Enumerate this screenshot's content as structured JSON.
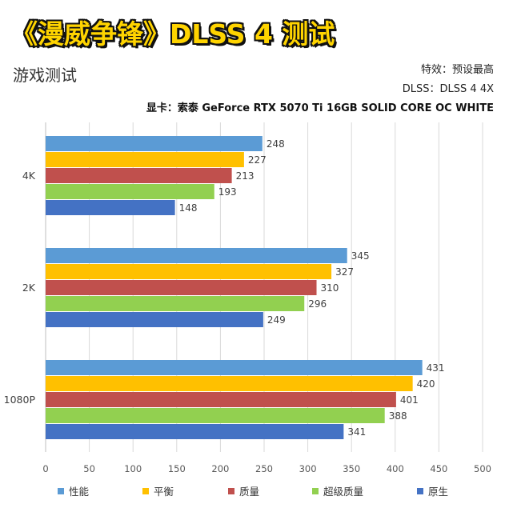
{
  "header": {
    "title": "《漫威争锋》DLSS 4 测试",
    "subtitle": "游戏测试",
    "setting_line": "特效：预设最高",
    "dlss_line": "DLSS：DLSS 4 4X",
    "gpu_line": "显卡：索泰 GeForce RTX 5070 Ti 16GB SOLID CORE OC WHITE"
  },
  "chart_data": {
    "type": "bar",
    "orientation": "horizontal",
    "categories": [
      "4K",
      "2K",
      "1080P"
    ],
    "series": [
      {
        "name": "性能",
        "color": "#5b9bd5",
        "values": [
          248,
          345,
          431
        ]
      },
      {
        "name": "平衡",
        "color": "#ffc000",
        "values": [
          227,
          327,
          420
        ]
      },
      {
        "name": "质量",
        "color": "#c0504d",
        "values": [
          213,
          310,
          401
        ]
      },
      {
        "name": "超级质量",
        "color": "#92d050",
        "values": [
          193,
          296,
          388
        ]
      },
      {
        "name": "原生",
        "color": "#4472c4",
        "values": [
          148,
          249,
          341
        ]
      }
    ],
    "xlim": [
      0,
      500
    ],
    "xticks": [
      0,
      50,
      100,
      150,
      200,
      250,
      300,
      350,
      400,
      450,
      500
    ],
    "grid": true,
    "legend_position": "bottom"
  }
}
